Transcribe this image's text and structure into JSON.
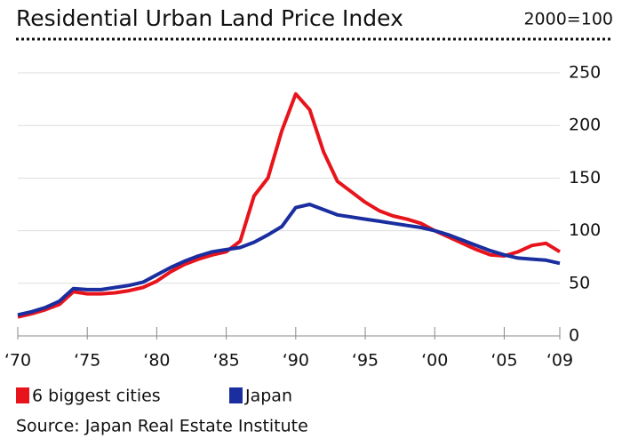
{
  "chart_data": {
    "type": "line",
    "title": "Residential Urban Land Price Index",
    "subtitle": "2000=100",
    "source": "Source: Japan Real Estate Institute",
    "x": [
      1970,
      1971,
      1972,
      1973,
      1974,
      1975,
      1976,
      1977,
      1978,
      1979,
      1980,
      1981,
      1982,
      1983,
      1984,
      1985,
      1986,
      1987,
      1988,
      1989,
      1990,
      1991,
      1992,
      1993,
      1994,
      1995,
      1996,
      1997,
      1998,
      1999,
      2000,
      2001,
      2002,
      2003,
      2004,
      2005,
      2006,
      2007,
      2008,
      2009
    ],
    "series": [
      {
        "name": "6 biggest cities",
        "color": "#e8141c",
        "values": [
          18,
          21,
          25,
          30,
          42,
          40,
          40,
          41,
          43,
          46,
          52,
          61,
          68,
          73,
          77,
          80,
          90,
          133,
          150,
          195,
          230,
          215,
          175,
          147,
          137,
          127,
          119,
          114,
          111,
          107,
          100,
          94,
          88,
          82,
          77,
          76,
          80,
          86,
          88,
          80
        ]
      },
      {
        "name": "Japan",
        "color": "#1a2ea0",
        "values": [
          20,
          23,
          27,
          33,
          45,
          44,
          44,
          46,
          48,
          51,
          58,
          65,
          71,
          76,
          80,
          82,
          84,
          89,
          96,
          104,
          122,
          125,
          120,
          115,
          113,
          111,
          109,
          107,
          105,
          103,
          100,
          96,
          91,
          86,
          81,
          77,
          74,
          73,
          72,
          69
        ]
      }
    ],
    "xlim": [
      1970,
      2009
    ],
    "xticks": [
      {
        "value": 1970,
        "label": "‘70"
      },
      {
        "value": 1975,
        "label": "‘75"
      },
      {
        "value": 1980,
        "label": "‘80"
      },
      {
        "value": 1985,
        "label": "‘85"
      },
      {
        "value": 1990,
        "label": "‘90"
      },
      {
        "value": 1995,
        "label": "‘95"
      },
      {
        "value": 2000,
        "label": "‘00"
      },
      {
        "value": 2005,
        "label": "‘05"
      },
      {
        "value": 2009,
        "label": "‘09"
      }
    ],
    "ylim": [
      0,
      250
    ],
    "yticks": [
      0,
      50,
      100,
      150,
      200,
      250
    ],
    "grid": true
  }
}
